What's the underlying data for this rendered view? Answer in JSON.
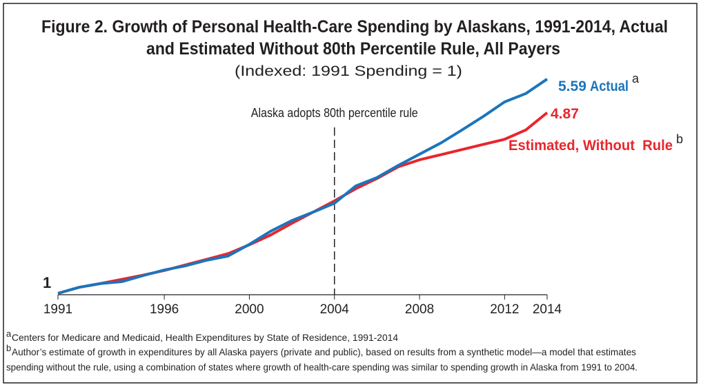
{
  "chart_data": {
    "type": "line",
    "title": [
      "Figure 2. Growth of Personal Health-Care Spending by Alaskans, 1991-2014, Actual",
      "and Estimated Without 80th Percentile Rule, All Payers"
    ],
    "subtitle": "(Indexed: 1991 Spending = 1)",
    "x": [
      1991,
      1992,
      1993,
      1994,
      1995,
      1996,
      1997,
      1998,
      1999,
      2000,
      2001,
      2002,
      2003,
      2004,
      2005,
      2006,
      2007,
      2008,
      2009,
      2010,
      2011,
      2012,
      2013,
      2014
    ],
    "xlim": [
      1991,
      2014
    ],
    "xticks": [
      1991,
      1996,
      2000,
      2004,
      2008,
      2012,
      2014
    ],
    "ylim": [
      1,
      6
    ],
    "series": [
      {
        "name": "Actual",
        "superscript": "a",
        "color": "#1b75bc",
        "values": [
          1,
          1.13,
          1.21,
          1.25,
          1.38,
          1.5,
          1.59,
          1.71,
          1.8,
          2.05,
          2.33,
          2.56,
          2.74,
          2.93,
          3.3,
          3.48,
          3.74,
          3.98,
          4.22,
          4.5,
          4.79,
          5.1,
          5.28,
          5.59
        ]
      },
      {
        "name": "Estimated, Without  Rule",
        "superscript": "b",
        "color": "#e8262c",
        "values": [
          1,
          1.13,
          1.21,
          1.3,
          1.39,
          1.49,
          1.61,
          1.73,
          1.85,
          2.04,
          2.25,
          2.5,
          2.74,
          2.98,
          3.24,
          3.46,
          3.71,
          3.86,
          3.97,
          4.08,
          4.19,
          4.3,
          4.5,
          4.87
        ]
      }
    ],
    "annotations": [
      {
        "text": "Alaska adopts 80th percentile rule",
        "x": 2004
      }
    ],
    "footnotes": [
      {
        "marker": "a",
        "lines": [
          "Centers for Medicare and Medicaid, Health Expenditures by State of Residence, 1991-2014"
        ]
      },
      {
        "marker": "b",
        "lines": [
          "Author’s estimate of growth in expenditures by all Alaska payers (private and public), based on results from a synthetic model—a model that estimates",
          "spending without the rule, using a combination of states where growth of health-care spending was similar to spending growth in Alaska from 1991 to 2004."
        ]
      }
    ]
  }
}
